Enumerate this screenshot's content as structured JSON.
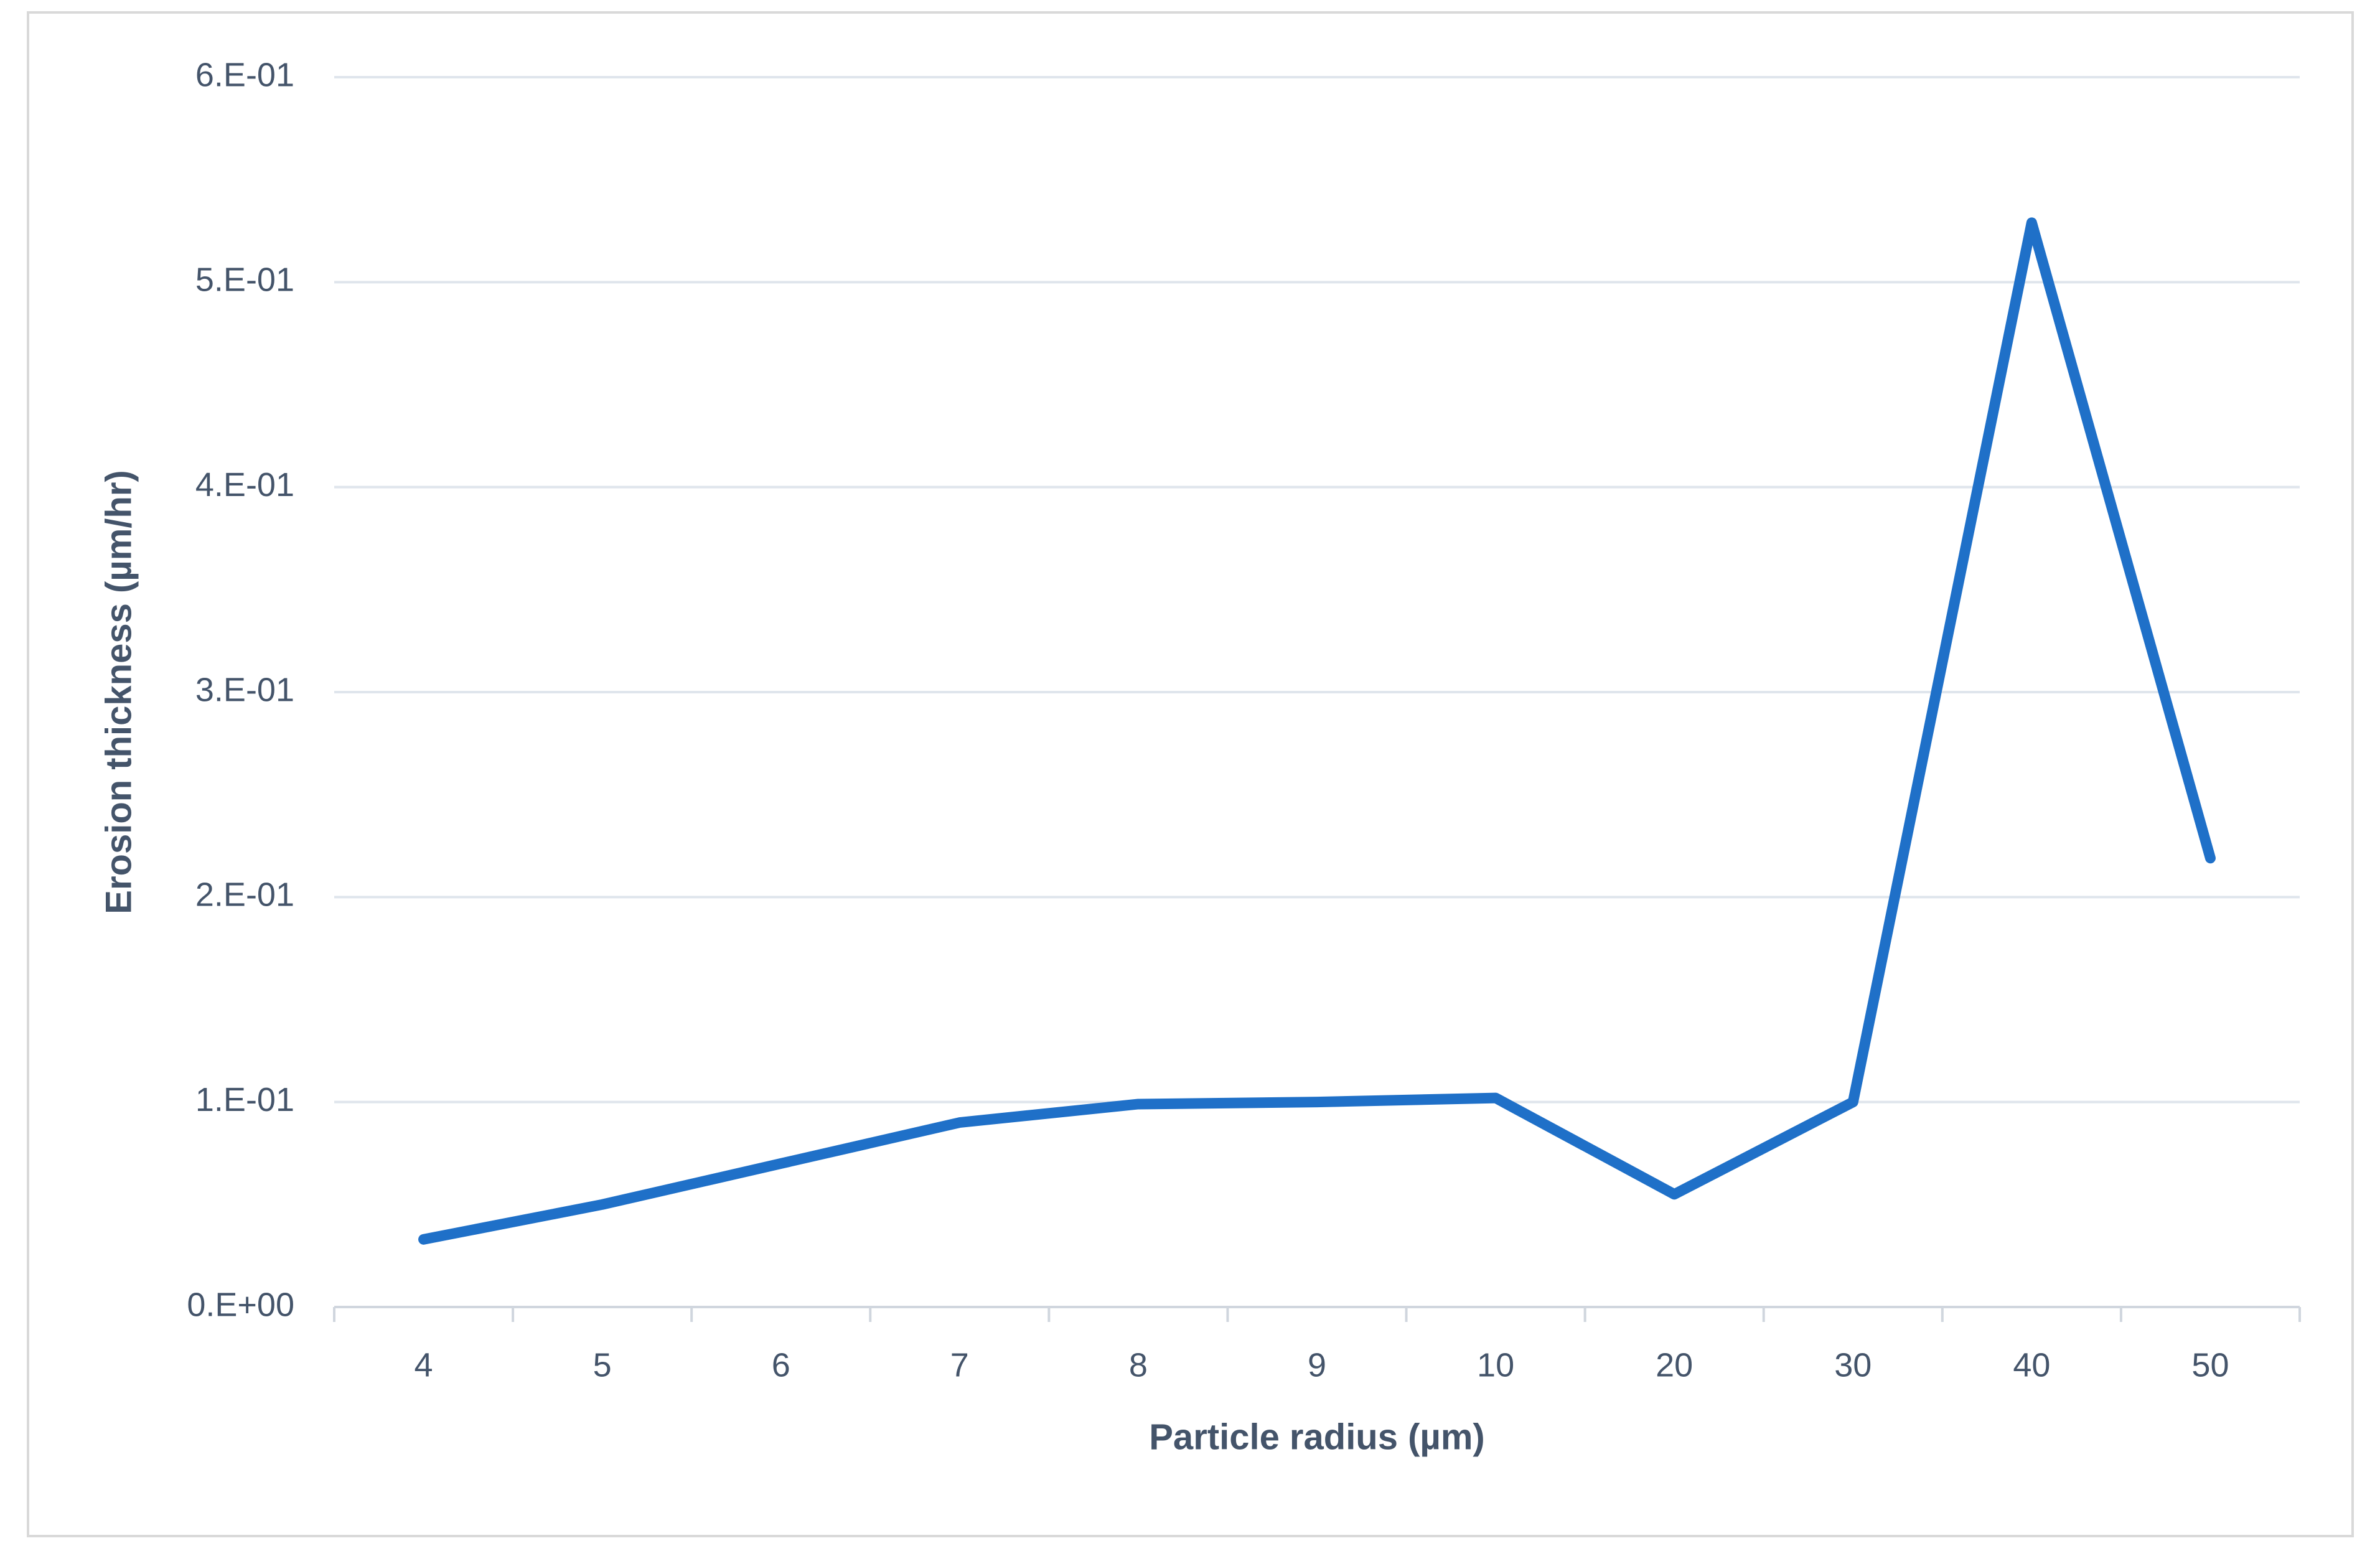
{
  "chart_data": {
    "type": "line",
    "x_label": "Particle radius (µm)",
    "y_label": "Erosion thickness (µm/hr)",
    "categories": [
      "4",
      "5",
      "6",
      "7",
      "8",
      "9",
      "10",
      "20",
      "30",
      "40",
      "50"
    ],
    "values": [
      0.033,
      0.05,
      0.07,
      0.09,
      0.099,
      0.1,
      0.102,
      0.055,
      0.1,
      0.529,
      0.219
    ],
    "color": "#1f70c8",
    "ylim": [
      0,
      0.6
    ],
    "yticks": [
      {
        "value": 0,
        "label": "0.E+00"
      },
      {
        "value": 0.1,
        "label": "1.E-01"
      },
      {
        "value": 0.2,
        "label": "2.E-01"
      },
      {
        "value": 0.3,
        "label": "3.E-01"
      },
      {
        "value": 0.4,
        "label": "4.E-01"
      },
      {
        "value": 0.5,
        "label": "5.E-01"
      },
      {
        "value": 0.6,
        "label": "6.E-01"
      }
    ],
    "grid": true
  }
}
